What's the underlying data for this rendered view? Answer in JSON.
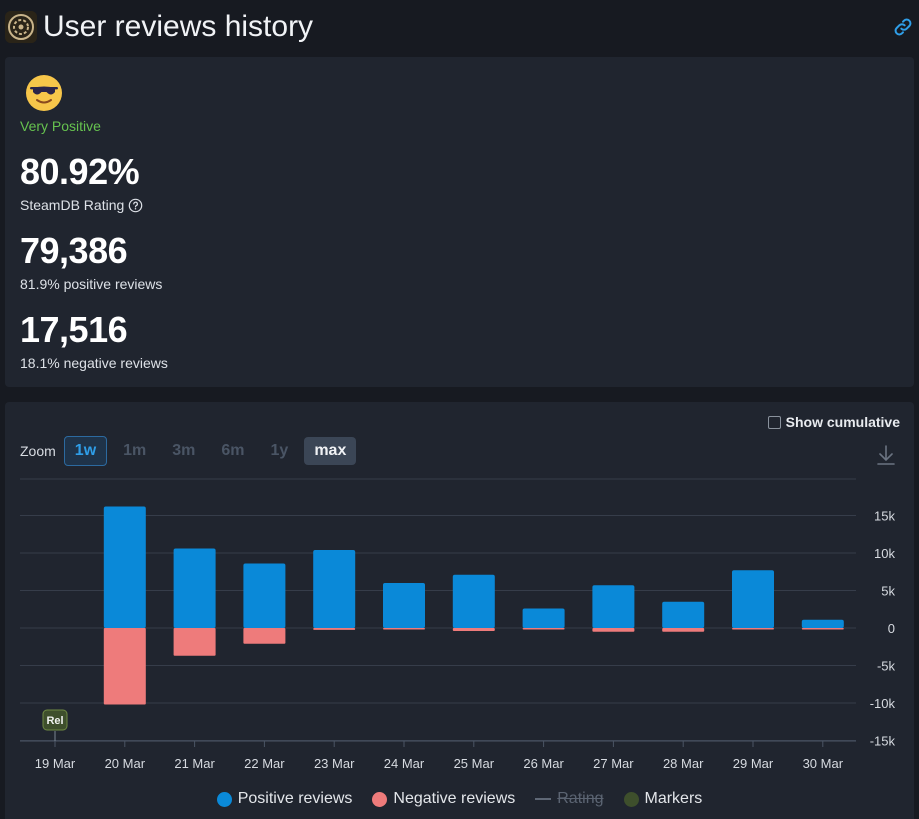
{
  "page": {
    "title": "User reviews history"
  },
  "summary": {
    "rating_word": "Very Positive",
    "steamdb_rating": "80.92%",
    "steamdb_label": "SteamDB Rating",
    "positive_count": "79,386",
    "positive_label": "81.9% positive reviews",
    "negative_count": "17,516",
    "negative_label": "18.1% negative reviews"
  },
  "controls": {
    "show_cumulative": "Show cumulative",
    "zoom_label": "Zoom",
    "zoom_options": [
      "1w",
      "1m",
      "3m",
      "6m",
      "1y",
      "max"
    ]
  },
  "legend": {
    "positive": "Positive reviews",
    "negative": "Negative reviews",
    "rating": "Rating",
    "markers": "Markers"
  },
  "colors": {
    "positive": "#0a89d8",
    "negative": "#ee7b7b",
    "rating_word": "#66c24f",
    "markers": "#3e4f2c"
  },
  "chart_data": {
    "type": "bar",
    "categories": [
      "19 Mar",
      "20 Mar",
      "21 Mar",
      "22 Mar",
      "23 Mar",
      "24 Mar",
      "25 Mar",
      "26 Mar",
      "27 Mar",
      "28 Mar",
      "29 Mar",
      "30 Mar"
    ],
    "series": [
      {
        "name": "Positive reviews",
        "values": [
          0,
          16200,
          10600,
          8600,
          10400,
          6000,
          7100,
          2600,
          5700,
          3500,
          7700,
          1100
        ]
      },
      {
        "name": "Negative reviews",
        "values": [
          0,
          -10200,
          -3700,
          -2100,
          -250,
          -150,
          -400,
          -100,
          -500,
          -500,
          -100,
          -50
        ]
      }
    ],
    "y_ticks": [
      15000,
      10000,
      5000,
      0,
      -5000,
      -10000,
      -15000
    ],
    "y_tick_labels": [
      "15k",
      "10k",
      "5k",
      "0",
      "-5k",
      "-10k",
      "-15k"
    ],
    "ylim": [
      -15000,
      20000
    ],
    "marker": {
      "category": "19 Mar",
      "label": "Rel"
    },
    "legend_position": "bottom"
  }
}
